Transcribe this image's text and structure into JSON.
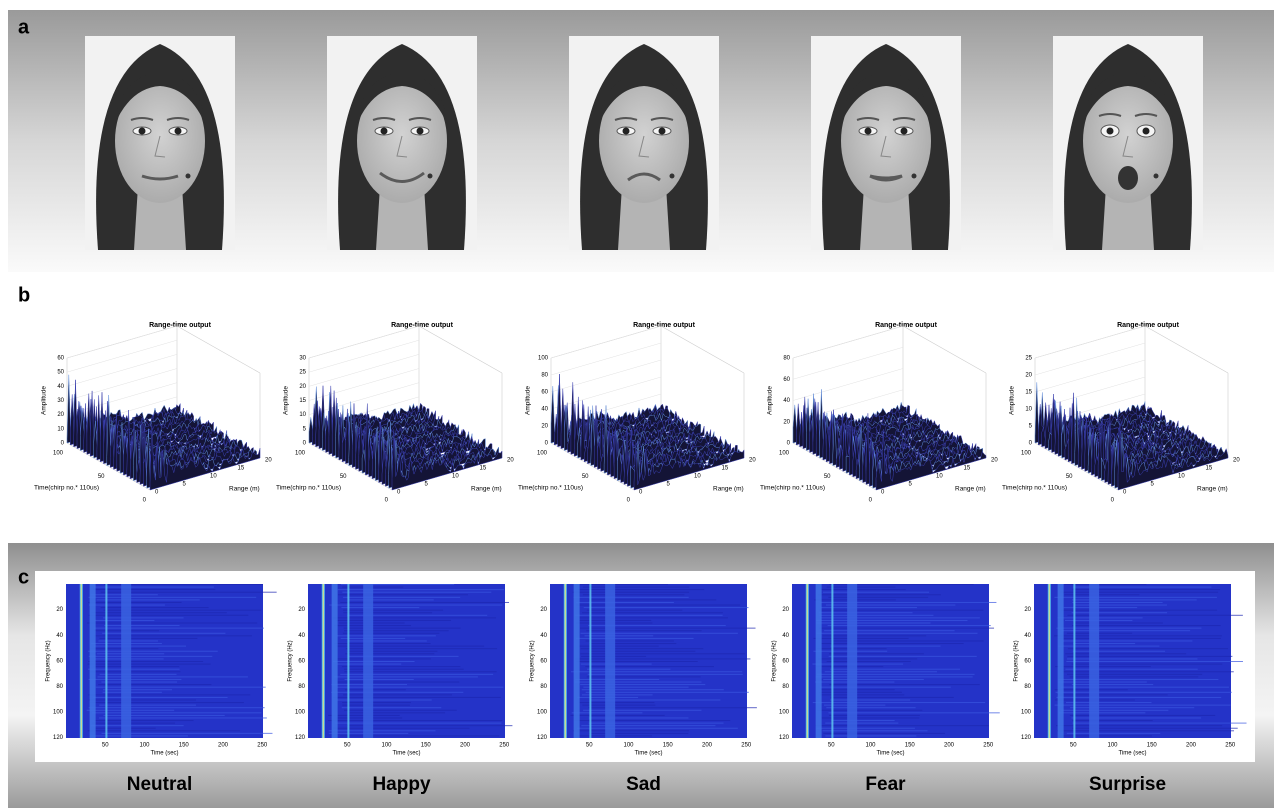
{
  "panel_labels": [
    "a",
    "b",
    "c"
  ],
  "emotions": [
    "Neutral",
    "Happy",
    "Sad",
    "Fear",
    "Surprise"
  ],
  "range_time": {
    "z_label": "Amplitude",
    "x_label": "Range (m)",
    "y_label": "Time(chirp no.* 110us)",
    "range_ticks": [
      0,
      5,
      10,
      15,
      20
    ],
    "time_ticks": [
      0,
      50,
      100
    ],
    "plots": [
      {
        "title": "Range-time output",
        "z_ticks": [
          0,
          10,
          20,
          30,
          40,
          50,
          60
        ]
      },
      {
        "title": "Range-time output",
        "z_ticks": [
          0,
          5,
          10,
          15,
          20,
          25,
          30
        ]
      },
      {
        "title": "Range-time output",
        "z_ticks": [
          0,
          20,
          40,
          60,
          80,
          100
        ]
      },
      {
        "title": "Range-time output",
        "z_ticks": [
          0,
          20,
          40,
          60,
          80
        ]
      },
      {
        "title": "Range-time output",
        "z_ticks": [
          0,
          5,
          10,
          15,
          20,
          25
        ]
      }
    ]
  },
  "spectrogram": {
    "y_label": "Frequency (Hz)",
    "x_label": "Time (sec)",
    "y_ticks": [
      20,
      40,
      60,
      80,
      100,
      120
    ],
    "x_ticks": [
      50,
      100,
      150,
      200,
      250
    ]
  }
}
